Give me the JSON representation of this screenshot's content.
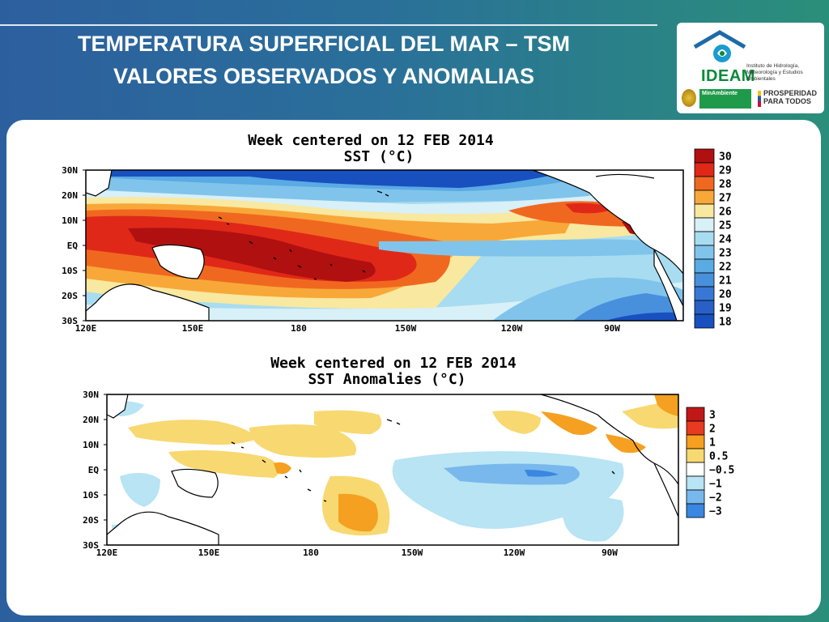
{
  "title": {
    "line1": "TEMPERATURA SUPERFICIAL DEL MAR – TSM",
    "line2": "VALORES OBSERVADOS Y ANOMALIAS"
  },
  "logo": {
    "name": "IDEAM",
    "description": "Instituto de Hidrología, Meteorología y Estudios Ambientales",
    "ministry": "MinAmbiente",
    "slogan_line1": "PROSPERIDAD",
    "slogan_line2": "PARA TODOS"
  },
  "map_top": {
    "title_line1": "Week centered on 12 FEB 2014",
    "title_line2": "SST (°C)",
    "lat_labels": [
      "30N",
      "20N",
      "10N",
      "EQ",
      "10S",
      "20S",
      "30S"
    ],
    "lon_labels": [
      "120E",
      "150E",
      "180",
      "150W",
      "120W",
      "90W"
    ],
    "legend": {
      "values": [
        "30",
        "29",
        "28",
        "27",
        "26",
        "25",
        "24",
        "23",
        "22",
        "21",
        "20",
        "19",
        "18"
      ],
      "colors": [
        "#b01010",
        "#e02818",
        "#f06820",
        "#f8a838",
        "#f8e8a0",
        "#d8f0f8",
        "#a8dcf0",
        "#80c4ec",
        "#5aaae4",
        "#4890dc",
        "#3878d4",
        "#2860c8",
        "#1850c0"
      ]
    }
  },
  "map_bottom": {
    "title_line1": "Week centered on 12 FEB 2014",
    "title_line2": "SST Anomalies (°C)",
    "lat_labels": [
      "30N",
      "20N",
      "10N",
      "EQ",
      "10S",
      "20S",
      "30S"
    ],
    "lon_labels": [
      "120E",
      "150E",
      "180",
      "150W",
      "120W",
      "90W"
    ],
    "legend": {
      "values": [
        "3",
        "2",
        "1",
        "0.5",
        "−0.5",
        "−1",
        "−2",
        "−3"
      ],
      "colors": [
        "#c01818",
        "#e83a20",
        "#f5a020",
        "#f8d870",
        "#ffffff",
        "#b8e4f4",
        "#78b8ec",
        "#3a86e0"
      ]
    }
  }
}
